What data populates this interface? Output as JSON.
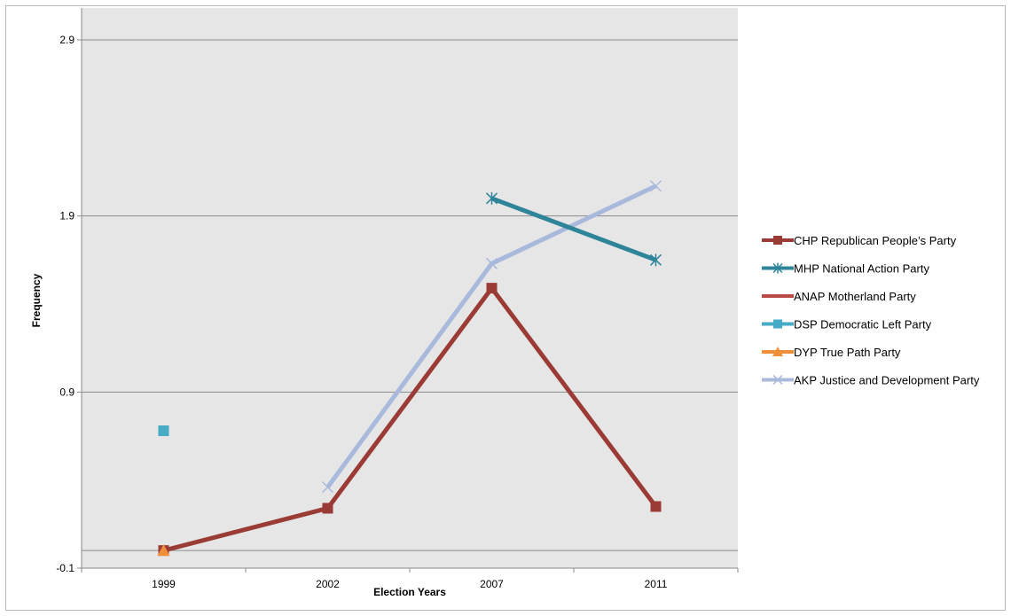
{
  "chart_data": {
    "type": "line",
    "title": "",
    "xlabel": "Election Years",
    "ylabel": "Frequency",
    "categories": [
      "1999",
      "2002",
      "2007",
      "2011"
    ],
    "y_ticks": [
      "2.9",
      "1.9",
      "0.9",
      "-0.1"
    ],
    "ylim": [
      -0.1,
      2.9
    ],
    "grid": true,
    "legend_position": "right",
    "series": [
      {
        "name": "CHP Republican People’s Party",
        "color": "#9b3b36",
        "marker": "square",
        "values": [
          0,
          0.24,
          1.49,
          0.25
        ]
      },
      {
        "name": "MHP National Action Party",
        "color": "#2e8499",
        "marker": "asterisk",
        "values": [
          null,
          null,
          2.0,
          1.65
        ]
      },
      {
        "name": "ANAP Motherland Party",
        "color": "#b94a45",
        "marker": "none",
        "values": [
          0,
          null,
          null,
          null
        ]
      },
      {
        "name": "DSP Democratic Left Party",
        "color": "#45abc7",
        "marker": "square",
        "values": [
          0.68,
          null,
          null,
          null
        ]
      },
      {
        "name": "DYP True Path Party",
        "color": "#f08f3a",
        "marker": "triangle",
        "values": [
          0,
          null,
          null,
          null
        ]
      },
      {
        "name": "AKP Justice and Development Party",
        "color": "#a8b9dc",
        "marker": "x",
        "values": [
          null,
          0.36,
          1.63,
          2.07
        ]
      }
    ]
  }
}
